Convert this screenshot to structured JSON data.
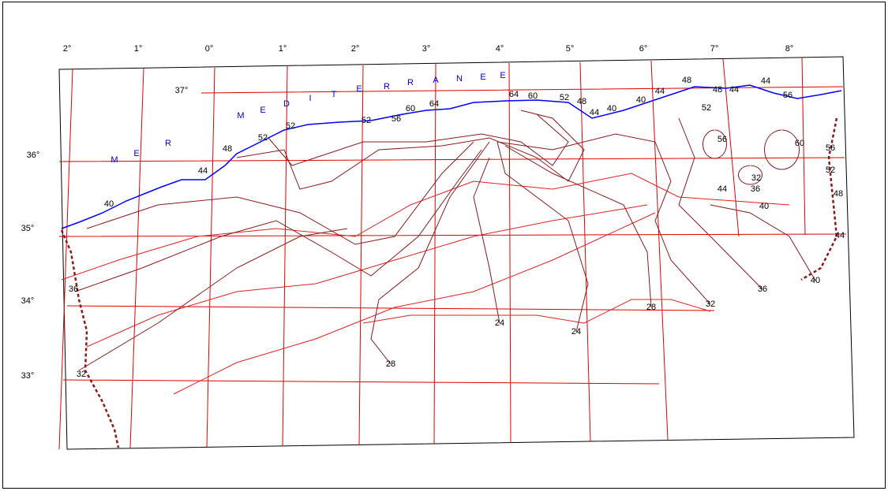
{
  "longitude_labels": [
    "2°",
    "1°",
    "0°",
    "1°",
    "2°",
    "3°",
    "4°",
    "5°",
    "6°",
    "7°",
    "8°"
  ],
  "latitude_labels": [
    "37°",
    "36°",
    "35°",
    "34°",
    "33°"
  ],
  "sea_letters": [
    "M",
    "E",
    "R",
    "M",
    "E",
    "D",
    "I",
    "T",
    "E",
    "R",
    "R",
    "A",
    "N",
    "E",
    "E"
  ],
  "contour_labels": [
    "40",
    "44",
    "48",
    "52",
    "52",
    "52",
    "56",
    "60",
    "64",
    "64",
    "60",
    "52",
    "48",
    "44",
    "40",
    "40",
    "44",
    "48",
    "48",
    "44",
    "44",
    "56",
    "52",
    "56",
    "60",
    "56",
    "52",
    "48",
    "44",
    "40",
    "36",
    "32",
    "28",
    "24",
    "24",
    "28",
    "32",
    "36",
    "44",
    "36",
    "32",
    "40"
  ]
}
